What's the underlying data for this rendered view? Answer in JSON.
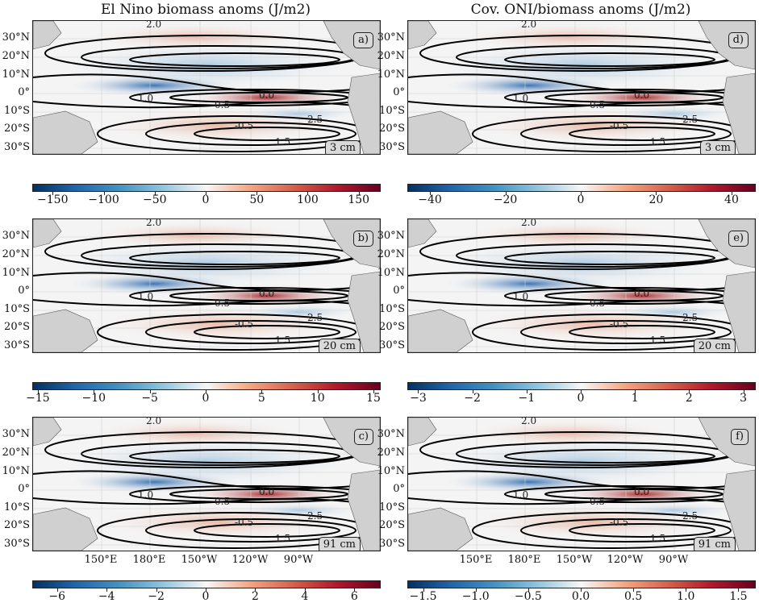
{
  "titles": {
    "left": "El Nino biomass anoms (J/m2)",
    "right": "Cov. ONI/biomass anoms (J/m2)"
  },
  "lat_labels": [
    "30°N",
    "20°N",
    "10°N",
    "0°",
    "10°S",
    "20°S",
    "30°S"
  ],
  "lon_labels": [
    "150°E",
    "180°E",
    "150°W",
    "120°W",
    "90°W"
  ],
  "panels": [
    {
      "id": "a",
      "label": "a)",
      "depth": "3 cm"
    },
    {
      "id": "d",
      "label": "d)",
      "depth": "3 cm"
    },
    {
      "id": "b",
      "label": "b)",
      "depth": "20 cm"
    },
    {
      "id": "e",
      "label": "e)",
      "depth": "20 cm"
    },
    {
      "id": "c",
      "label": "c)",
      "depth": "91 cm"
    },
    {
      "id": "f",
      "label": "f)",
      "depth": "91 cm"
    }
  ],
  "colorbars": [
    {
      "id": "cb1",
      "ticks": [
        "−150",
        "−100",
        "−50",
        "0",
        "50",
        "100",
        "150"
      ],
      "values": [
        -150,
        -100,
        -50,
        0,
        50,
        100,
        150
      ],
      "range": [
        -170,
        170
      ]
    },
    {
      "id": "cb2",
      "ticks": [
        "−40",
        "−20",
        "0",
        "20",
        "40"
      ],
      "values": [
        -40,
        -20,
        0,
        20,
        40
      ],
      "range": [
        -46,
        46
      ]
    },
    {
      "id": "cb3",
      "ticks": [
        "−15",
        "−10",
        "−5",
        "0",
        "5",
        "10",
        "15"
      ],
      "values": [
        -15,
        -10,
        -5,
        0,
        5,
        10,
        15
      ],
      "range": [
        -15.5,
        15.5
      ]
    },
    {
      "id": "cb4",
      "ticks": [
        "−3",
        "−2",
        "−1",
        "0",
        "1",
        "2",
        "3"
      ],
      "values": [
        -3,
        -2,
        -1,
        0,
        1,
        2,
        3
      ],
      "range": [
        -3.2,
        3.2
      ]
    },
    {
      "id": "cb5",
      "ticks": [
        "−6",
        "−4",
        "−2",
        "0",
        "2",
        "4",
        "6"
      ],
      "values": [
        -6,
        -4,
        -2,
        0,
        2,
        4,
        6
      ],
      "range": [
        -7,
        7
      ]
    },
    {
      "id": "cb6",
      "ticks": [
        "−1.5",
        "−1.0",
        "−0.5",
        "0.0",
        "0.5",
        "1.0",
        "1.5"
      ],
      "values": [
        -1.5,
        -1.0,
        -0.5,
        0.0,
        0.5,
        1.0,
        1.5
      ],
      "range": [
        -1.65,
        1.65
      ]
    }
  ],
  "contour_labels": [
    "2.0",
    "1.0",
    "0.5",
    "0.0",
    "-0.5",
    "1.5",
    "2.5"
  ],
  "colors": {
    "negative": "#1f5fa8",
    "positive": "#9e1a1f",
    "land": "#d0d0d0",
    "contour": "#000000"
  },
  "chart_data": {
    "type": "heatmap",
    "note_type": "map panels with contour overlays",
    "xlim": [
      "120°E",
      "70°W"
    ],
    "ylim": [
      "40°S",
      "40°N"
    ]
  }
}
